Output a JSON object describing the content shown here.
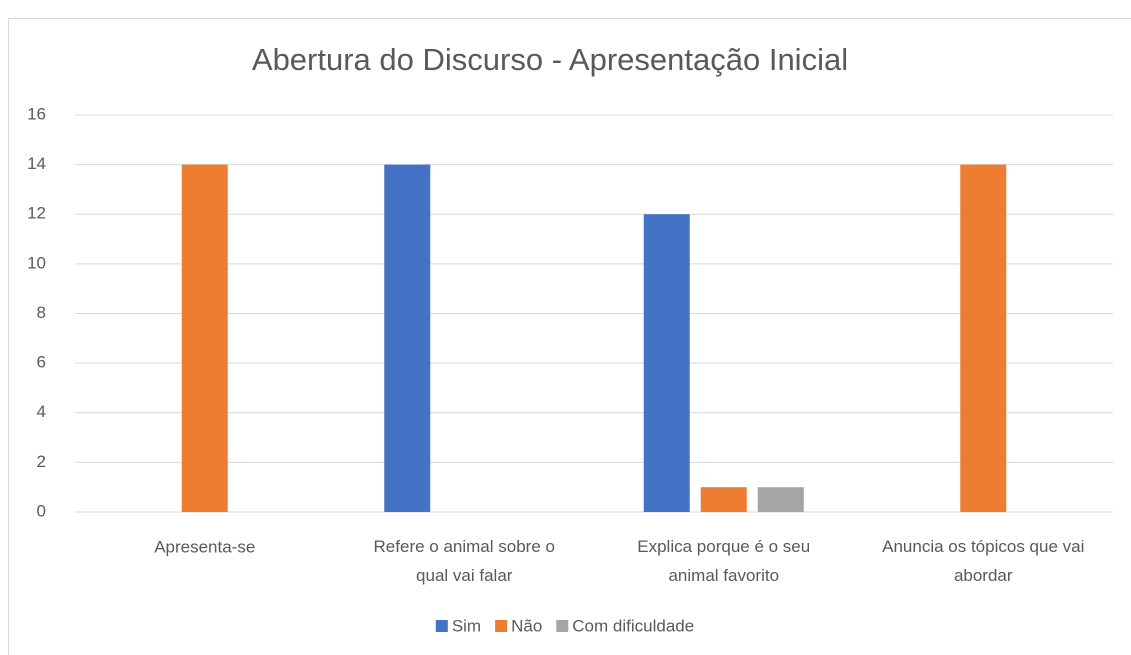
{
  "chart_data": {
    "type": "bar",
    "title": "Abertura do Discurso - Apresentação Inicial",
    "categories": [
      "Apresenta-se",
      "Refere o animal sobre o qual vai falar",
      "Explica porque é o seu animal favorito",
      "Anuncia os tópicos que vai abordar"
    ],
    "series": [
      {
        "name": "Sim",
        "color": "#4472c4",
        "values": [
          0,
          14,
          12,
          0
        ]
      },
      {
        "name": "Não",
        "color": "#ed7d31",
        "values": [
          14,
          0,
          1,
          14
        ]
      },
      {
        "name": "Com dificuldade",
        "color": "#a5a5a5",
        "values": [
          0,
          0,
          1,
          0
        ]
      }
    ],
    "ylim": [
      0,
      16
    ],
    "yticks": [
      0,
      2,
      4,
      6,
      8,
      10,
      12,
      14,
      16
    ],
    "grid": true,
    "legend": "bottom"
  }
}
